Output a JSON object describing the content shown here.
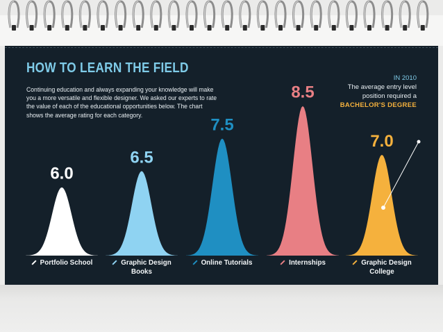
{
  "header": {
    "title": "HOW TO LEARN THE FIELD",
    "intro": "Continuing education and always expanding your knowledge will make you a more versatile and flexible designer. We asked our experts to rate the value of each of the educational opportunities below. The chart shows the average rating for each category."
  },
  "note": {
    "year": "IN 2010",
    "line1": "The average entry level",
    "line2": "position required a",
    "degree": "BACHELOR'S DEGREE"
  },
  "colors": {
    "background": "#14202a",
    "accent": "#7fcbe8",
    "highlight": "#f5b13d"
  },
  "chart_data": {
    "type": "area",
    "categories": [
      "Portfolio School",
      "Graphic Design Books",
      "Online Tutorials",
      "Internships",
      "Graphic Design College"
    ],
    "values": [
      6.0,
      6.5,
      7.5,
      8.5,
      7.0
    ],
    "value_labels": [
      "6.0",
      "6.5",
      "7.5",
      "8.5",
      "7.0"
    ],
    "label_lines": [
      [
        "Portfolio School"
      ],
      [
        "Graphic Design",
        "Books"
      ],
      [
        "Online Tutorials"
      ],
      [
        "Internships"
      ],
      [
        "Graphic Design",
        "College"
      ]
    ],
    "colors": [
      "#ffffff",
      "#8fd3f2",
      "#1f8fc2",
      "#e87f84",
      "#f5b13d"
    ],
    "title": "",
    "xlabel": "",
    "ylabel": "",
    "ylim": [
      0,
      10
    ]
  }
}
